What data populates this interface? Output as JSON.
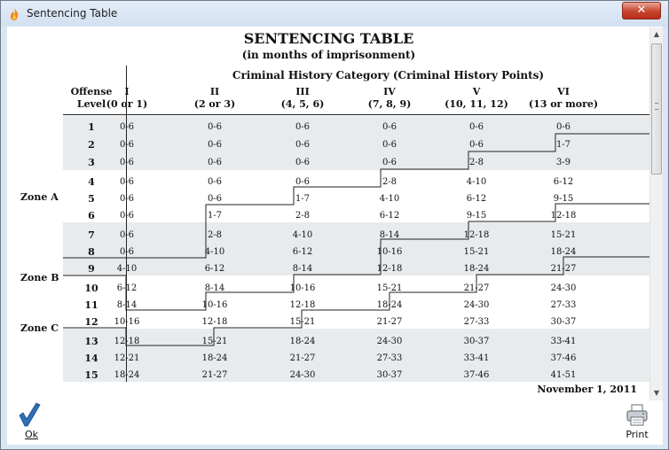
{
  "window": {
    "title": "Sentencing Table",
    "close_glyph": "✕"
  },
  "table": {
    "title": "SENTENCING TABLE",
    "subtitle": "(in months of imprisonment)",
    "category_header": "Criminal History Category (Criminal History Points)",
    "offense_header_line1": "Offense",
    "offense_header_line2": "Level",
    "columns": [
      {
        "roman": "I",
        "points": "(0 or 1)"
      },
      {
        "roman": "II",
        "points": "(2 or 3)"
      },
      {
        "roman": "III",
        "points": "(4, 5, 6)"
      },
      {
        "roman": "IV",
        "points": "(7, 8, 9)"
      },
      {
        "roman": "V",
        "points": "(10, 11, 12)"
      },
      {
        "roman": "VI",
        "points": "(13 or more)"
      }
    ],
    "rows": [
      {
        "level": "1",
        "cells": [
          "0-6",
          "0-6",
          "0-6",
          "0-6",
          "0-6",
          "0-6"
        ]
      },
      {
        "level": "2",
        "cells": [
          "0-6",
          "0-6",
          "0-6",
          "0-6",
          "0-6",
          "1-7"
        ]
      },
      {
        "level": "3",
        "cells": [
          "0-6",
          "0-6",
          "0-6",
          "0-6",
          "2-8",
          "3-9"
        ]
      },
      {
        "level": "4",
        "cells": [
          "0-6",
          "0-6",
          "0-6",
          "2-8",
          "4-10",
          "6-12"
        ]
      },
      {
        "level": "5",
        "cells": [
          "0-6",
          "0-6",
          "1-7",
          "4-10",
          "6-12",
          "9-15"
        ]
      },
      {
        "level": "6",
        "cells": [
          "0-6",
          "1-7",
          "2-8",
          "6-12",
          "9-15",
          "12-18"
        ]
      },
      {
        "level": "7",
        "cells": [
          "0-6",
          "2-8",
          "4-10",
          "8-14",
          "12-18",
          "15-21"
        ]
      },
      {
        "level": "8",
        "cells": [
          "0-6",
          "4-10",
          "6-12",
          "10-16",
          "15-21",
          "18-24"
        ]
      },
      {
        "level": "9",
        "cells": [
          "4-10",
          "6-12",
          "8-14",
          "12-18",
          "18-24",
          "21-27"
        ]
      },
      {
        "level": "10",
        "cells": [
          "6-12",
          "8-14",
          "10-16",
          "15-21",
          "21-27",
          "24-30"
        ]
      },
      {
        "level": "11",
        "cells": [
          "8-14",
          "10-16",
          "12-18",
          "18-24",
          "24-30",
          "27-33"
        ]
      },
      {
        "level": "12",
        "cells": [
          "10-16",
          "12-18",
          "15-21",
          "21-27",
          "27-33",
          "30-37"
        ]
      },
      {
        "level": "13",
        "cells": [
          "12-18",
          "15-21",
          "18-24",
          "24-30",
          "30-37",
          "33-41"
        ]
      },
      {
        "level": "14",
        "cells": [
          "12-21",
          "18-24",
          "21-27",
          "27-33",
          "33-41",
          "37-46"
        ]
      },
      {
        "level": "15",
        "cells": [
          "18-24",
          "21-27",
          "24-30",
          "30-37",
          "37-46",
          "41-51"
        ]
      }
    ],
    "zones": [
      {
        "label": "Zone A"
      },
      {
        "label": "Zone B"
      },
      {
        "label": "Zone C"
      }
    ],
    "date": "November 1, 2011"
  },
  "footer": {
    "ok_label": "Ok",
    "print_label": "Print"
  },
  "colors": {
    "band": "#e7ebee",
    "ok_check": "#2e6fb5",
    "close_button": "#c7432e"
  },
  "icons": {
    "app": "flame-icon",
    "ok": "checkmark-icon",
    "print": "printer-icon",
    "close": "close-icon"
  }
}
